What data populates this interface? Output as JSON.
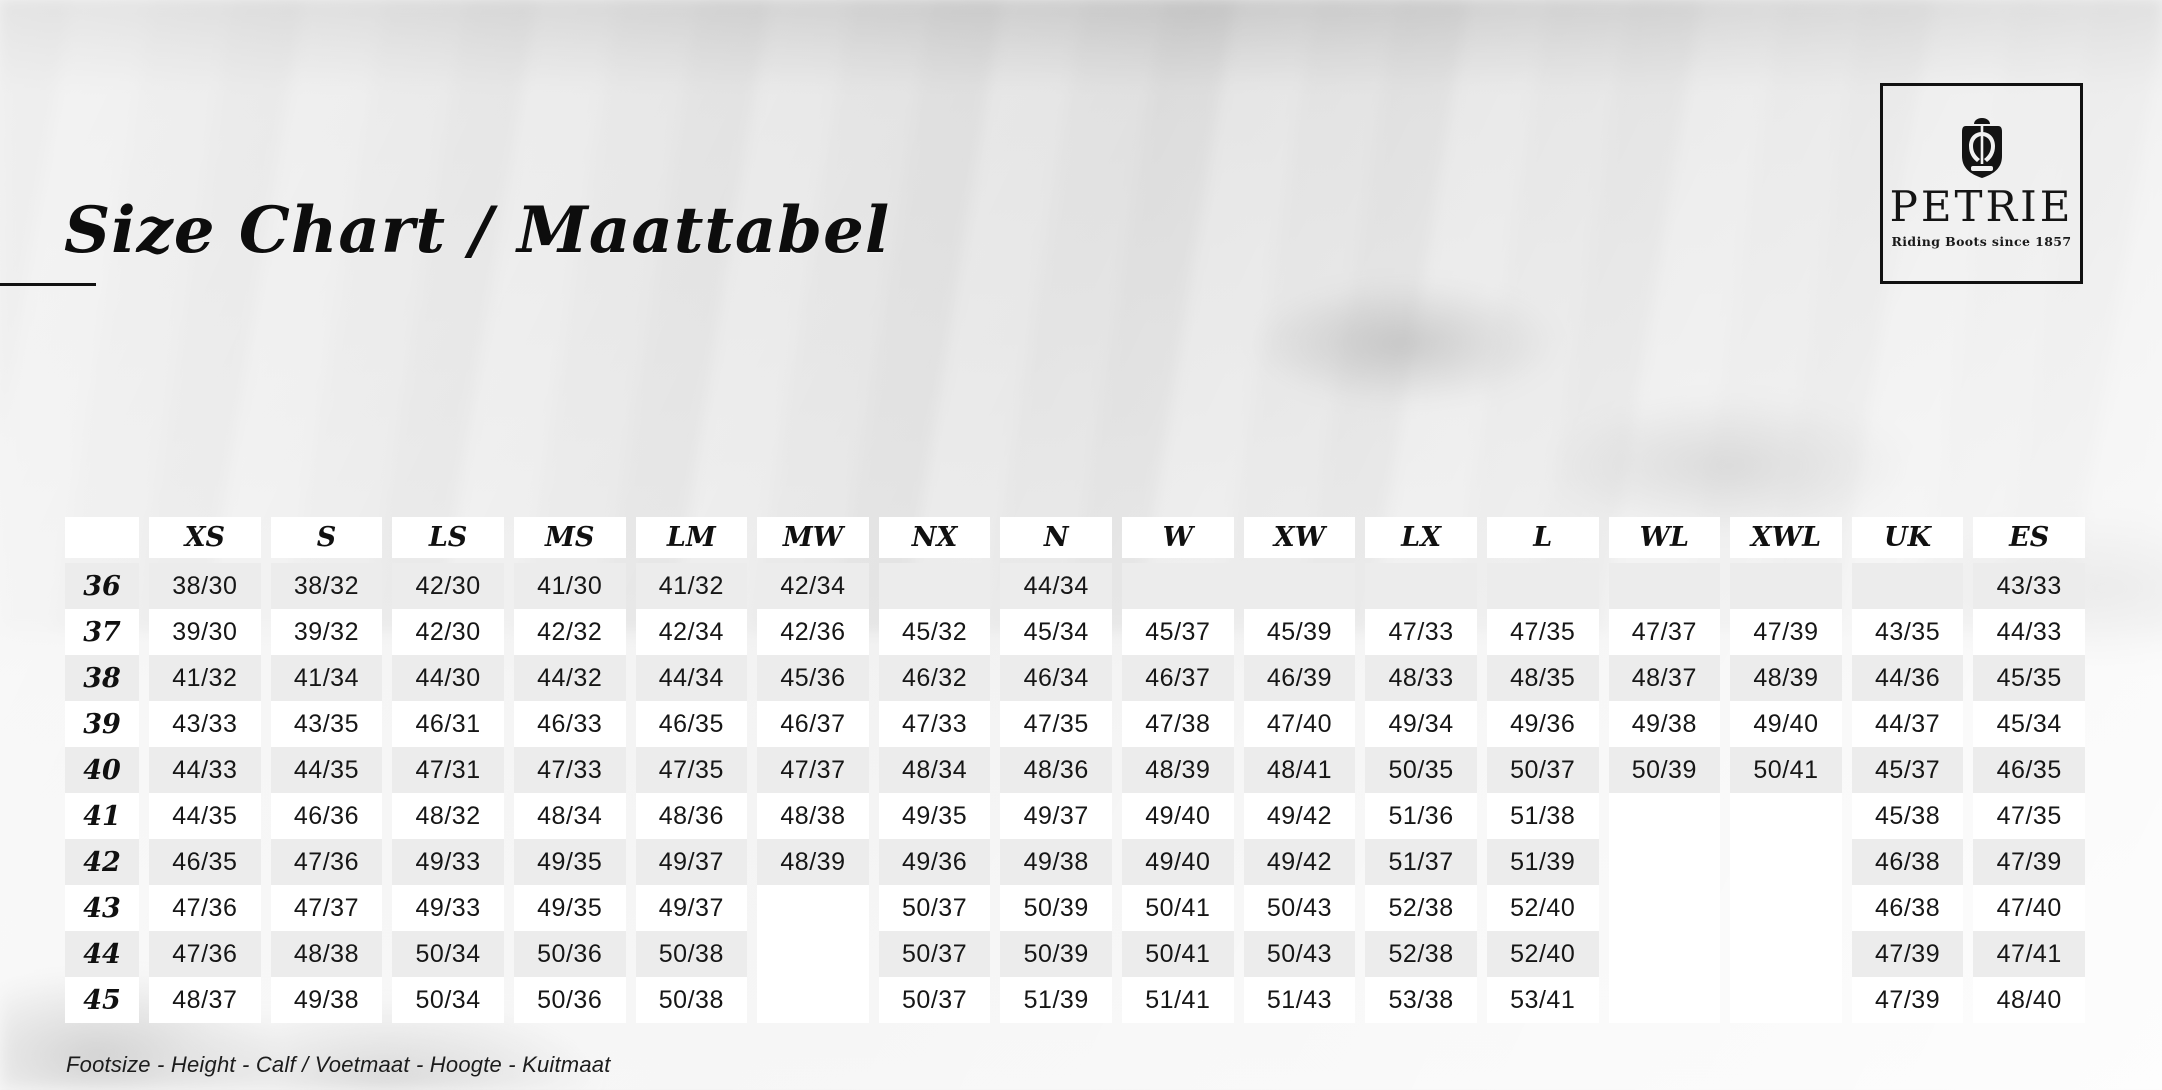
{
  "title": "Size Chart / Maattabel",
  "logo": {
    "name": "PETRIE",
    "tagline": "Riding Boots since 1857",
    "emblem_icon": "horseshoe-crest-icon"
  },
  "footnote": "Footsize - Height - Calf / Voetmaat - Hoogte - Kuitmaat",
  "colors": {
    "text": "#141414",
    "stripe_row": "#ececec",
    "white_row": "#ffffff",
    "logo_border": "#111111",
    "background_base": "#e6e6e6"
  },
  "table": {
    "columns": [
      "XS",
      "S",
      "LS",
      "MS",
      "LM",
      "MW",
      "NX",
      "N",
      "W",
      "XW",
      "LX",
      "L",
      "WL",
      "XWL",
      "UK",
      "ES"
    ],
    "rows": [
      {
        "size": "36",
        "values": [
          "38/30",
          "38/32",
          "42/30",
          "41/30",
          "41/32",
          "42/34",
          "",
          "44/34",
          "",
          "",
          "",
          "",
          "",
          "",
          "",
          "43/33"
        ]
      },
      {
        "size": "37",
        "values": [
          "39/30",
          "39/32",
          "42/30",
          "42/32",
          "42/34",
          "42/36",
          "45/32",
          "45/34",
          "45/37",
          "45/39",
          "47/33",
          "47/35",
          "47/37",
          "47/39",
          "43/35",
          "44/33"
        ]
      },
      {
        "size": "38",
        "values": [
          "41/32",
          "41/34",
          "44/30",
          "44/32",
          "44/34",
          "45/36",
          "46/32",
          "46/34",
          "46/37",
          "46/39",
          "48/33",
          "48/35",
          "48/37",
          "48/39",
          "44/36",
          "45/35"
        ]
      },
      {
        "size": "39",
        "values": [
          "43/33",
          "43/35",
          "46/31",
          "46/33",
          "46/35",
          "46/37",
          "47/33",
          "47/35",
          "47/38",
          "47/40",
          "49/34",
          "49/36",
          "49/38",
          "49/40",
          "44/37",
          "45/34"
        ]
      },
      {
        "size": "40",
        "values": [
          "44/33",
          "44/35",
          "47/31",
          "47/33",
          "47/35",
          "47/37",
          "48/34",
          "48/36",
          "48/39",
          "48/41",
          "50/35",
          "50/37",
          "50/39",
          "50/41",
          "45/37",
          "46/35"
        ]
      },
      {
        "size": "41",
        "values": [
          "44/35",
          "46/36",
          "48/32",
          "48/34",
          "48/36",
          "48/38",
          "49/35",
          "49/37",
          "49/40",
          "49/42",
          "51/36",
          "51/38",
          null,
          null,
          "45/38",
          "47/35"
        ]
      },
      {
        "size": "42",
        "values": [
          "46/35",
          "47/36",
          "49/33",
          "49/35",
          "49/37",
          "48/39",
          "49/36",
          "49/38",
          "49/40",
          "49/42",
          "51/37",
          "51/39",
          null,
          null,
          "46/38",
          "47/39"
        ]
      },
      {
        "size": "43",
        "values": [
          "47/36",
          "47/37",
          "49/33",
          "49/35",
          "49/37",
          null,
          "50/37",
          "50/39",
          "50/41",
          "50/43",
          "52/38",
          "52/40",
          null,
          null,
          "46/38",
          "47/40"
        ]
      },
      {
        "size": "44",
        "values": [
          "47/36",
          "48/38",
          "50/34",
          "50/36",
          "50/38",
          null,
          "50/37",
          "50/39",
          "50/41",
          "50/43",
          "52/38",
          "52/40",
          null,
          null,
          "47/39",
          "47/41"
        ]
      },
      {
        "size": "45",
        "values": [
          "48/37",
          "49/38",
          "50/34",
          "50/36",
          "50/38",
          null,
          "50/37",
          "51/39",
          "51/41",
          "51/43",
          "53/38",
          "53/41",
          null,
          null,
          "47/39",
          "48/40"
        ]
      }
    ]
  }
}
